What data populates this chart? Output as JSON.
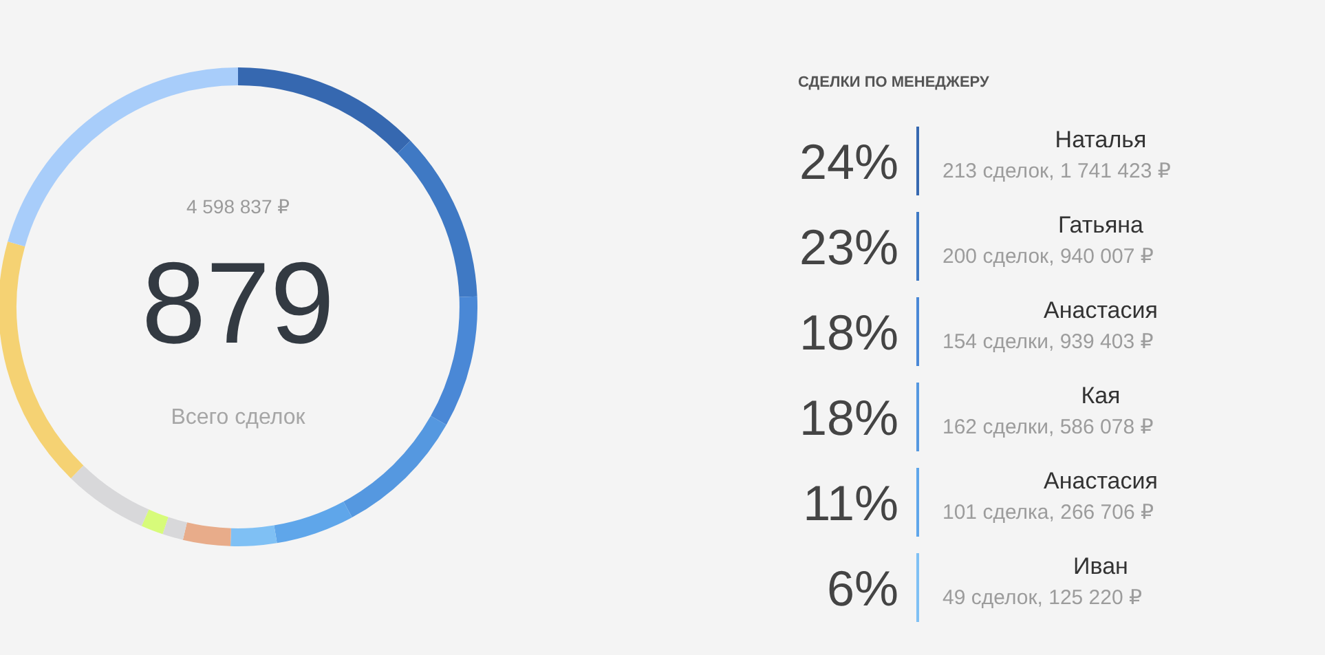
{
  "chart_data": [
    {
      "type": "donut",
      "annotations": [
        "4 598 837 ₽",
        "879",
        "Всего сделок"
      ],
      "categories": [
        null,
        null,
        null,
        null,
        null,
        null,
        null,
        null,
        null,
        null,
        null,
        null
      ],
      "values": [
        12.8,
        11.5,
        8.9,
        8.9,
        5.3,
        3.1,
        3.2,
        1.4,
        1.5,
        5.7,
        17.1,
        20.6
      ],
      "colors": [
        "#3668b0",
        "#3f79c4",
        "#4a88d6",
        "#5598e0",
        "#5fa6ea",
        "#7fc0f4",
        "#e8ac8a",
        "#d8d8da",
        "#d7fb7a",
        "#d8d8da",
        "#f5d273",
        "#a8cdfa"
      ]
    },
    {
      "type": "other",
      "title": "СДЕЛКИ ПО МЕНЕДЖЕРУ",
      "annotations": [
        "24%",
        "Наталья",
        "213 сделок, 1 741 423 ₽",
        "23%",
        "Гатьяна",
        "200 сделок, 940 007 ₽",
        "18%",
        "Анастасия",
        "154 сделки, 939 403 ₽",
        "18%",
        "Кая",
        "162 сделки, 586 078 ₽",
        "11%",
        "Анастасия",
        "101 сделка, 266 706 ₽",
        "6%",
        "Иван",
        "49 сделок, 125 220 ₽"
      ]
    }
  ]
}
